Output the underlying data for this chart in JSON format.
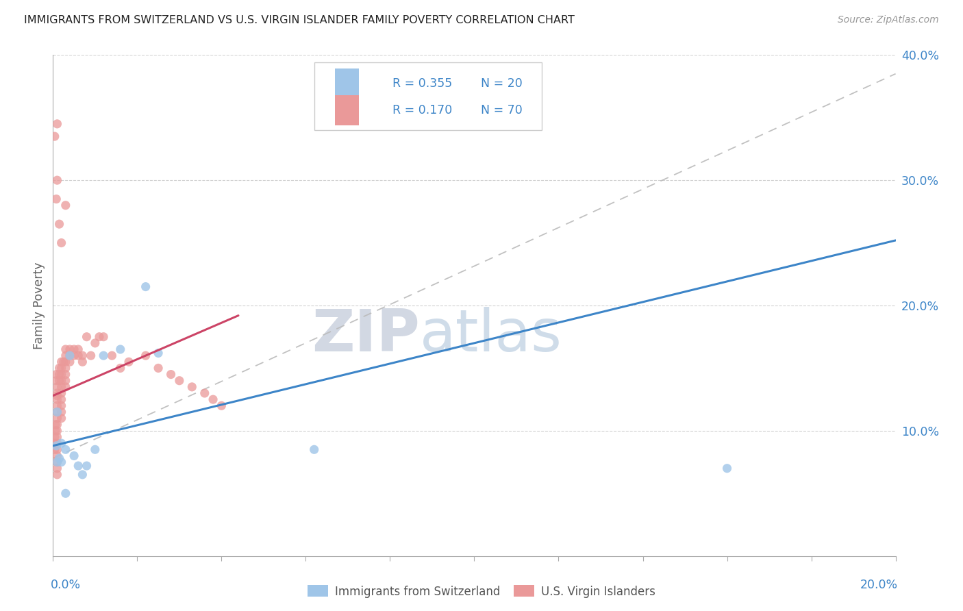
{
  "title": "IMMIGRANTS FROM SWITZERLAND VS U.S. VIRGIN ISLANDER FAMILY POVERTY CORRELATION CHART",
  "source": "Source: ZipAtlas.com",
  "ylabel": "Family Poverty",
  "xlim": [
    0.0,
    0.2
  ],
  "ylim": [
    0.0,
    0.4
  ],
  "watermark_zip": "ZIP",
  "watermark_atlas": "atlas",
  "legend_R1": "R = 0.355",
  "legend_N1": "N = 20",
  "legend_R2": "R = 0.170",
  "legend_N2": "N = 70",
  "color_blue": "#9fc5e8",
  "color_pink": "#ea9999",
  "color_line_blue": "#3d85c8",
  "color_line_pink": "#cc4466",
  "color_dashed": "#bbbbbb",
  "color_text_blue": "#3d85c8",
  "color_title": "#222222",
  "color_source": "#999999",
  "color_ylabel": "#666666",
  "blue_line_x": [
    0.0,
    0.2
  ],
  "blue_line_y": [
    0.088,
    0.252
  ],
  "pink_line_x": [
    0.0,
    0.044
  ],
  "pink_line_y": [
    0.128,
    0.192
  ],
  "dashed_line_x": [
    0.0,
    0.2
  ],
  "dashed_line_y": [
    0.078,
    0.385
  ],
  "blue_x": [
    0.0008,
    0.001,
    0.001,
    0.0015,
    0.002,
    0.002,
    0.003,
    0.003,
    0.004,
    0.005,
    0.006,
    0.007,
    0.008,
    0.01,
    0.012,
    0.016,
    0.022,
    0.025,
    0.062,
    0.16
  ],
  "blue_y": [
    0.088,
    0.075,
    0.115,
    0.078,
    0.09,
    0.075,
    0.085,
    0.05,
    0.16,
    0.08,
    0.072,
    0.065,
    0.072,
    0.085,
    0.16,
    0.165,
    0.215,
    0.162,
    0.085,
    0.07
  ],
  "pink_x": [
    0.0004,
    0.0004,
    0.0004,
    0.0006,
    0.0006,
    0.0008,
    0.0008,
    0.001,
    0.001,
    0.001,
    0.001,
    0.001,
    0.001,
    0.001,
    0.001,
    0.001,
    0.001,
    0.001,
    0.001,
    0.001,
    0.001,
    0.001,
    0.001,
    0.0015,
    0.0015,
    0.0015,
    0.002,
    0.002,
    0.002,
    0.002,
    0.002,
    0.002,
    0.002,
    0.002,
    0.002,
    0.002,
    0.0025,
    0.003,
    0.003,
    0.003,
    0.003,
    0.003,
    0.003,
    0.003,
    0.004,
    0.004,
    0.004,
    0.005,
    0.005,
    0.006,
    0.006,
    0.007,
    0.007,
    0.008,
    0.009,
    0.01,
    0.011,
    0.012,
    0.014,
    0.016,
    0.018,
    0.022,
    0.025,
    0.028,
    0.03,
    0.033,
    0.036,
    0.038,
    0.04,
    0.003
  ],
  "pink_y": [
    0.095,
    0.09,
    0.085,
    0.105,
    0.1,
    0.145,
    0.14,
    0.135,
    0.13,
    0.128,
    0.125,
    0.12,
    0.115,
    0.11,
    0.105,
    0.1,
    0.095,
    0.09,
    0.085,
    0.08,
    0.075,
    0.07,
    0.065,
    0.15,
    0.145,
    0.14,
    0.155,
    0.15,
    0.145,
    0.14,
    0.135,
    0.13,
    0.125,
    0.12,
    0.115,
    0.11,
    0.155,
    0.165,
    0.16,
    0.155,
    0.15,
    0.145,
    0.14,
    0.135,
    0.165,
    0.16,
    0.155,
    0.165,
    0.16,
    0.165,
    0.16,
    0.16,
    0.155,
    0.175,
    0.16,
    0.17,
    0.175,
    0.175,
    0.16,
    0.15,
    0.155,
    0.16,
    0.15,
    0.145,
    0.14,
    0.135,
    0.13,
    0.125,
    0.12,
    0.28
  ],
  "pink_outlier_x": [
    0.0004,
    0.0008,
    0.001,
    0.001,
    0.0015,
    0.002
  ],
  "pink_outlier_y": [
    0.335,
    0.285,
    0.345,
    0.3,
    0.265,
    0.25
  ]
}
